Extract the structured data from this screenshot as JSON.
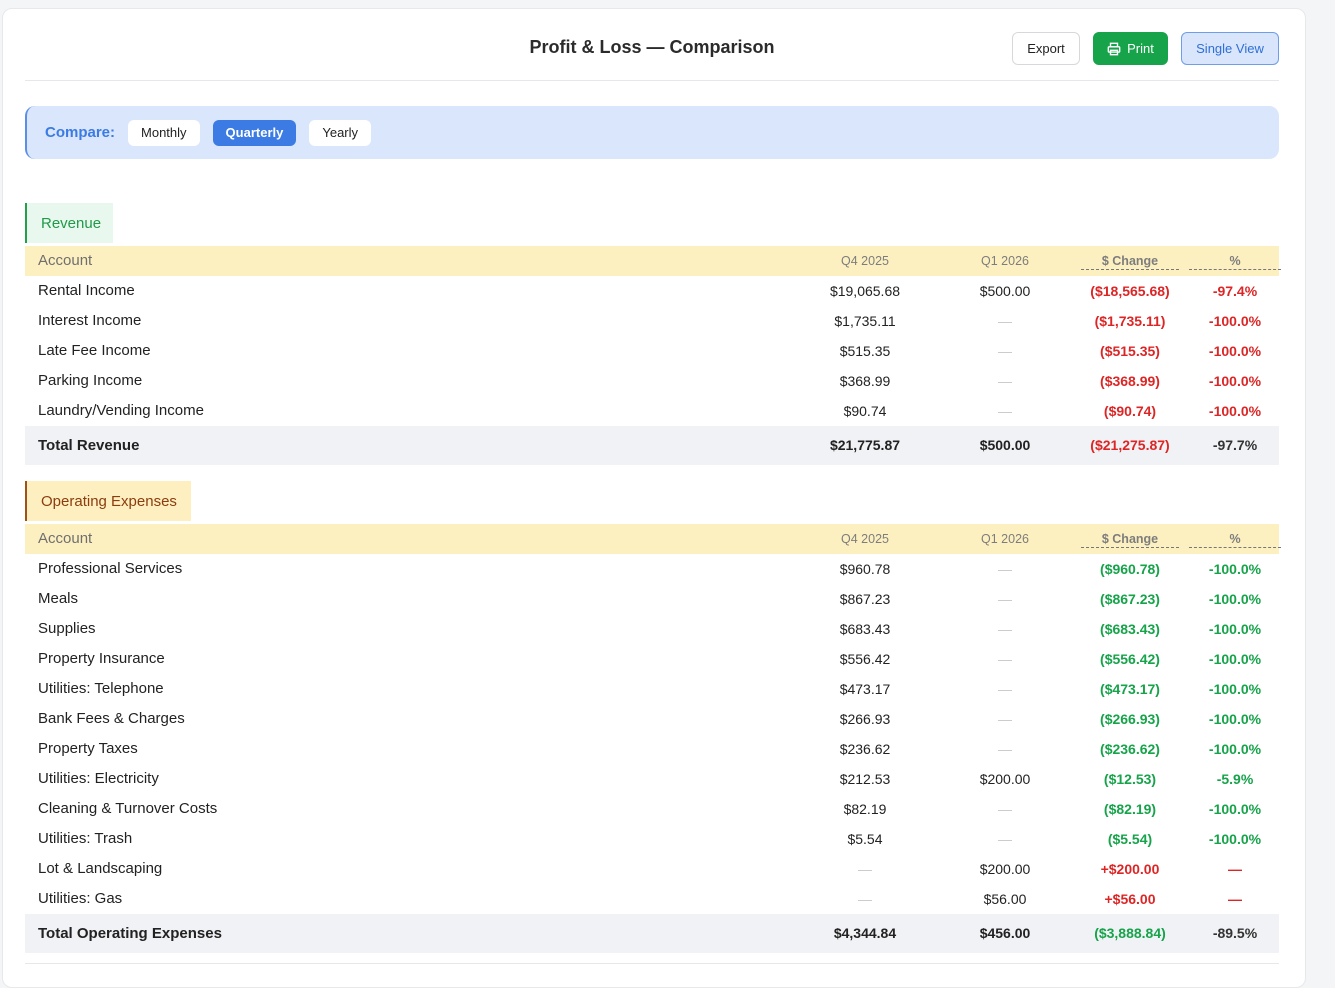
{
  "header": {
    "title": "Profit & Loss — Comparison",
    "export_label": "Export",
    "print_label": "Print",
    "single_view_label": "Single View"
  },
  "compare": {
    "label": "Compare:",
    "options": [
      "Monthly",
      "Quarterly",
      "Yearly"
    ],
    "selected": "Quarterly"
  },
  "columns": {
    "account": "Account",
    "q4": "Q4 2025",
    "q1": "Q1 2026",
    "change": "$ Change",
    "pct": "%"
  },
  "revenue": {
    "title": "Revenue",
    "rows": [
      {
        "name": "Rental Income",
        "q4": "$19,065.68",
        "q1": "$500.00",
        "change": "($18,565.68)",
        "pct": "-97.4%"
      },
      {
        "name": "Interest Income",
        "q4": "$1,735.11",
        "q1": "—",
        "change": "($1,735.11)",
        "pct": "-100.0%"
      },
      {
        "name": "Late Fee Income",
        "q4": "$515.35",
        "q1": "—",
        "change": "($515.35)",
        "pct": "-100.0%"
      },
      {
        "name": "Parking Income",
        "q4": "$368.99",
        "q1": "—",
        "change": "($368.99)",
        "pct": "-100.0%"
      },
      {
        "name": "Laundry/Vending Income",
        "q4": "$90.74",
        "q1": "—",
        "change": "($90.74)",
        "pct": "-100.0%"
      }
    ],
    "total": {
      "name": "Total Revenue",
      "q4": "$21,775.87",
      "q1": "$500.00",
      "change": "($21,275.87)",
      "pct": "-97.7%"
    }
  },
  "opex": {
    "title": "Operating Expenses",
    "rows": [
      {
        "name": "Professional Services",
        "q4": "$960.78",
        "q1": "—",
        "change": "($960.78)",
        "pct": "-100.0%",
        "tone": "green"
      },
      {
        "name": "Meals",
        "q4": "$867.23",
        "q1": "—",
        "change": "($867.23)",
        "pct": "-100.0%",
        "tone": "green"
      },
      {
        "name": "Supplies",
        "q4": "$683.43",
        "q1": "—",
        "change": "($683.43)",
        "pct": "-100.0%",
        "tone": "green"
      },
      {
        "name": "Property Insurance",
        "q4": "$556.42",
        "q1": "—",
        "change": "($556.42)",
        "pct": "-100.0%",
        "tone": "green"
      },
      {
        "name": "Utilities: Telephone",
        "q4": "$473.17",
        "q1": "—",
        "change": "($473.17)",
        "pct": "-100.0%",
        "tone": "green"
      },
      {
        "name": "Bank Fees & Charges",
        "q4": "$266.93",
        "q1": "—",
        "change": "($266.93)",
        "pct": "-100.0%",
        "tone": "green"
      },
      {
        "name": "Property Taxes",
        "q4": "$236.62",
        "q1": "—",
        "change": "($236.62)",
        "pct": "-100.0%",
        "tone": "green"
      },
      {
        "name": "Utilities: Electricity",
        "q4": "$212.53",
        "q1": "$200.00",
        "change": "($12.53)",
        "pct": "-5.9%",
        "tone": "green"
      },
      {
        "name": "Cleaning & Turnover Costs",
        "q4": "$82.19",
        "q1": "—",
        "change": "($82.19)",
        "pct": "-100.0%",
        "tone": "green"
      },
      {
        "name": "Utilities: Trash",
        "q4": "$5.54",
        "q1": "—",
        "change": "($5.54)",
        "pct": "-100.0%",
        "tone": "green"
      },
      {
        "name": "Lot & Landscaping",
        "q4": "—",
        "q1": "$200.00",
        "change": "+$200.00",
        "pct": "—",
        "tone": "red"
      },
      {
        "name": "Utilities: Gas",
        "q4": "—",
        "q1": "$56.00",
        "change": "+$56.00",
        "pct": "—",
        "tone": "red"
      }
    ],
    "total": {
      "name": "Total Operating Expenses",
      "q4": "$4,344.84",
      "q1": "$456.00",
      "change": "($3,888.84)",
      "pct": "-89.5%"
    }
  },
  "colors": {
    "accent_blue": "#3b7be3",
    "print_green": "#16a34a",
    "negative_red": "#dc2626",
    "positive_green": "#16a34a",
    "header_yellow": "#fdf0c0"
  }
}
